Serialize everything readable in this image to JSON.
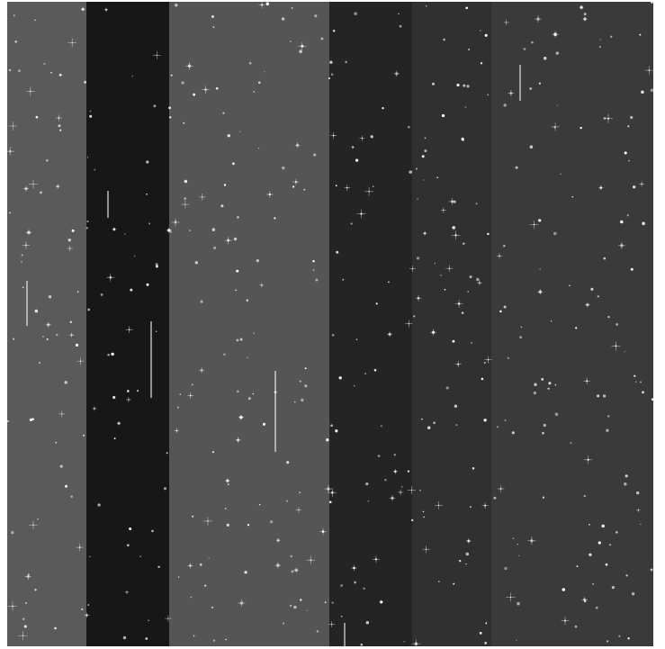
{
  "image": {
    "kind": "astronomical-detector-frame",
    "background_color": "#ffffff",
    "field_color": "#4d4d4d",
    "readout_columns": [
      {
        "id": "col-1",
        "color": "#5a5a5a"
      },
      {
        "id": "col-2",
        "color": "#171717"
      },
      {
        "id": "col-3",
        "color": "#555555"
      },
      {
        "id": "col-4",
        "color": "#242424"
      },
      {
        "id": "col-5",
        "color": "#303030"
      },
      {
        "id": "col-6",
        "color": "#3a3a3a"
      }
    ],
    "star_color": "#ffffff"
  }
}
